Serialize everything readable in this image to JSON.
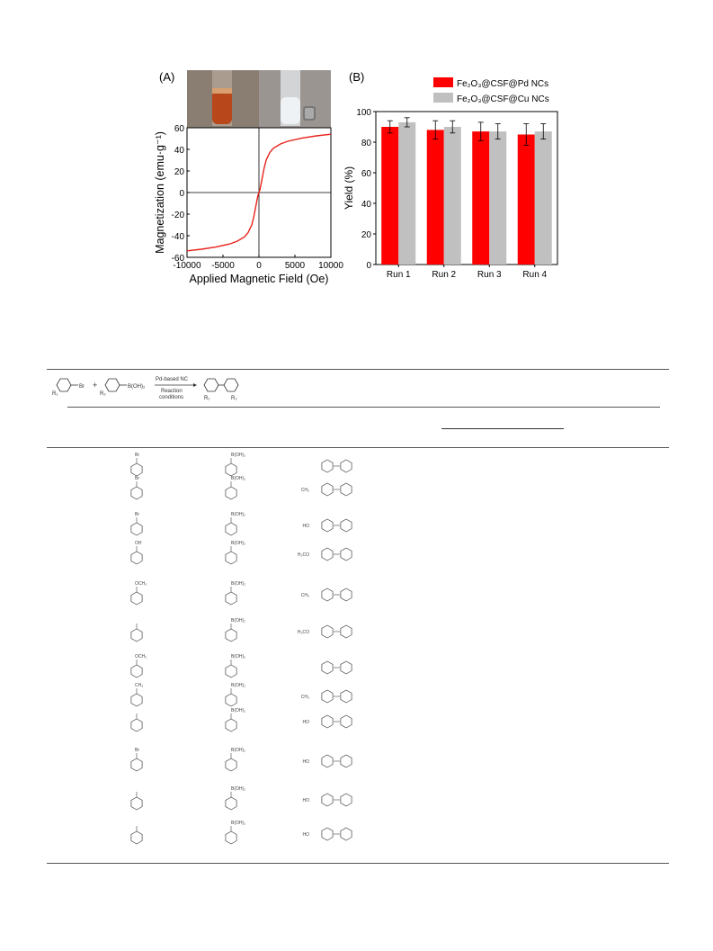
{
  "figure": {
    "panel_a_label": "(A)",
    "panel_b_label": "(B)"
  },
  "chart_data": [
    {
      "type": "line",
      "panel": "(A)",
      "xlabel": "Applied Magnetic Field (Oe)",
      "ylabel": "Magnetization (emu·g⁻¹)",
      "xlim": [
        -10000,
        10000
      ],
      "ylim": [
        -60,
        60
      ],
      "xticks": [
        "-10000",
        "-5000",
        "0",
        "5000",
        "10000"
      ],
      "yticks": [
        "-60",
        "-40",
        "-20",
        "0",
        "20",
        "40",
        "60"
      ],
      "series": [
        {
          "color": "#e8221b",
          "x": [
            -10000,
            -8000,
            -6000,
            -4000,
            -3000,
            -2000,
            -1500,
            -1000,
            -700,
            -500,
            -300,
            -150,
            0,
            150,
            300,
            500,
            700,
            1000,
            1500,
            2000,
            3000,
            4000,
            6000,
            8000,
            10000
          ],
          "y": [
            -54,
            -52.5,
            -50.5,
            -47.5,
            -45,
            -41,
            -37,
            -30,
            -22,
            -15,
            -8,
            -3,
            0,
            3,
            8,
            15,
            22,
            30,
            37,
            41,
            45,
            47.5,
            50.5,
            52.5,
            54
          ]
        }
      ]
    },
    {
      "type": "bar",
      "panel": "(B)",
      "categories": [
        "Run 1",
        "Run 2",
        "Run 3",
        "Run 4"
      ],
      "ylabel": "Yield (%)",
      "ylim": [
        0,
        100
      ],
      "yticks": [
        "0",
        "20",
        "40",
        "60",
        "80",
        "100"
      ],
      "legend_position": "top",
      "series": [
        {
          "name": "Fe₂O₃@CSF@Pd NCs",
          "color": "#ff0000",
          "values": [
            90,
            88,
            87,
            85
          ],
          "errors": [
            4,
            6,
            6,
            7
          ]
        },
        {
          "name": "Fe₂O₃@CSF@Cu NCs",
          "color": "#c0c0c0",
          "values": [
            93,
            90,
            87,
            87
          ],
          "errors": [
            3,
            4,
            5,
            5
          ]
        }
      ]
    }
  ],
  "scheme": {
    "reactant1": "Br",
    "plus": "+",
    "reactant2": "B(OH)₂",
    "r1": "R₁",
    "r2": "R₂",
    "catalyst": "Pd-based NC",
    "conditions_line1": "Reaction",
    "conditions_line2": "conditions"
  },
  "table_rows": [
    {
      "reagent_a": "Br",
      "reagent_b": "B(OH)₂",
      "product_sub": ""
    },
    {
      "reagent_a": "Br",
      "reagent_b": "B(OH)₂",
      "product_sub": "CH₃"
    },
    {
      "reagent_a": "Br",
      "reagent_b": "B(OH)₂",
      "product_sub": "HO"
    },
    {
      "reagent_a": "OH",
      "reagent_b": "B(OH)₂",
      "product_sub": "H₃CO"
    },
    {
      "reagent_a": "OCH₃",
      "reagent_b": "B(OH)₂",
      "product_sub": "CH₃"
    },
    {
      "reagent_a": "",
      "reagent_b": "B(OH)₂",
      "product_sub": "H₃CO"
    },
    {
      "reagent_a": "OCH₃",
      "reagent_b": "B(OH)₂",
      "product_sub": ""
    },
    {
      "reagent_a": "CH₃",
      "reagent_b": "B(OH)₂",
      "product_sub": "CH₃"
    },
    {
      "reagent_a": "",
      "reagent_b": "B(OH)₂",
      "product_sub": "HO"
    },
    {
      "reagent_a": "Br",
      "reagent_b": "B(OH)₂",
      "product_sub": "HO"
    },
    {
      "reagent_a": "",
      "reagent_b": "B(OH)₂",
      "product_sub": "HO"
    },
    {
      "reagent_a": "",
      "reagent_b": "B(OH)₂",
      "product_sub": "HO"
    }
  ]
}
